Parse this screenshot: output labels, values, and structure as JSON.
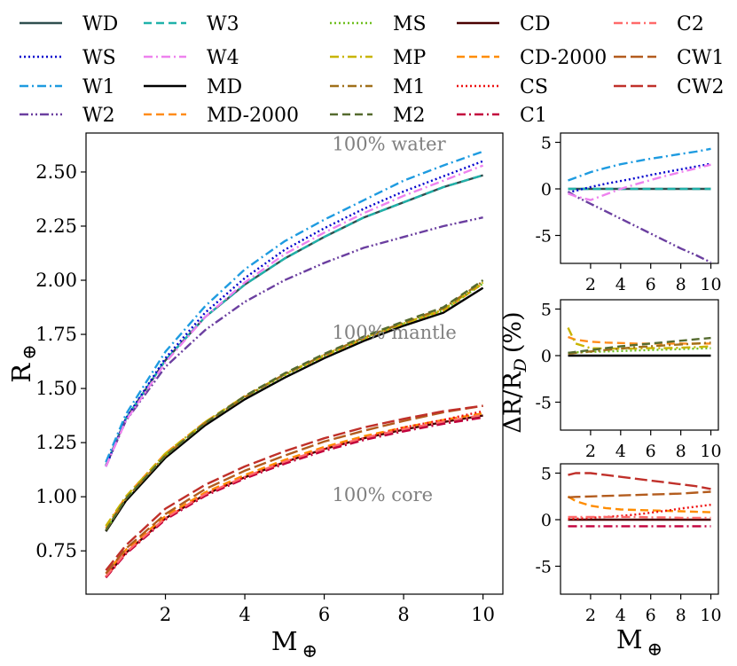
{
  "legend_entries": [
    {
      "key": "WD",
      "label": "WD",
      "color": "#2f4f4f",
      "dash": "solid"
    },
    {
      "key": "WS",
      "label": "WS",
      "color": "#0000cd",
      "dash": "dotted"
    },
    {
      "key": "W1",
      "label": "W1",
      "color": "#1e9be0",
      "dash": "dashdot"
    },
    {
      "key": "W2",
      "label": "W2",
      "color": "#6b3fa0",
      "dash": "dashdotdot"
    },
    {
      "key": "W3",
      "label": "W3",
      "color": "#20b2aa",
      "dash": "dashed"
    },
    {
      "key": "W4",
      "label": "W4",
      "color": "#ee82ee",
      "dash": "dashdot"
    },
    {
      "key": "MD",
      "label": "MD",
      "color": "#000000",
      "dash": "solid"
    },
    {
      "key": "MD-2000",
      "label": "MD-2000",
      "color": "#ff8c1a",
      "dash": "dashed"
    },
    {
      "key": "MS",
      "label": "MS",
      "color": "#6fbf1f",
      "dash": "dotted"
    },
    {
      "key": "MP",
      "label": "MP",
      "color": "#c8b400",
      "dash": "dashdot"
    },
    {
      "key": "M1",
      "label": "M1",
      "color": "#a0701a",
      "dash": "dashdot"
    },
    {
      "key": "M2",
      "label": "M2",
      "color": "#556b2f",
      "dash": "dashed"
    },
    {
      "key": "CD",
      "label": "CD",
      "color": "#4a0000",
      "dash": "solid"
    },
    {
      "key": "CD-2000",
      "label": "CD-2000",
      "color": "#ff8c00",
      "dash": "dashed"
    },
    {
      "key": "CS",
      "label": "CS",
      "color": "#ee1111",
      "dash": "dotted"
    },
    {
      "key": "C1",
      "label": "C1",
      "color": "#c2003c",
      "dash": "dashdot"
    },
    {
      "key": "C2",
      "label": "C2",
      "color": "#ff6a6a",
      "dash": "dashdot"
    },
    {
      "key": "CW1",
      "label": "CW1",
      "color": "#b35c1e",
      "dash": "longdash"
    },
    {
      "key": "CW2",
      "label": "CW2",
      "color": "#c0302a",
      "dash": "longdash"
    }
  ],
  "chart_data": [
    {
      "type": "line",
      "panel": "main",
      "xlabel": "M",
      "xlabel_symbol": "⊕",
      "ylabel": "R",
      "ylabel_symbol": "⊕",
      "xlim": [
        0,
        10.5
      ],
      "ylim": [
        0.55,
        2.68
      ],
      "xticks": [
        2,
        4,
        6,
        8,
        10
      ],
      "yticks": [
        0.75,
        1.0,
        1.25,
        1.5,
        1.75,
        2.0,
        2.25,
        2.5
      ],
      "yticklabels": [
        "0.75",
        "1.00",
        "1.25",
        "1.50",
        "1.75",
        "2.00",
        "2.25",
        "2.50"
      ],
      "annotations": [
        {
          "text": "100% water",
          "x": 6.2,
          "y": 2.6
        },
        {
          "text": "100% mantle",
          "x": 6.2,
          "y": 1.73
        },
        {
          "text": "100% core",
          "x": 6.2,
          "y": 0.98
        }
      ],
      "x": [
        0.5,
        1,
        2,
        3,
        4,
        5,
        6,
        7,
        8,
        9,
        10
      ],
      "series": [
        {
          "key": "WD",
          "values": [
            1.145,
            1.36,
            1.63,
            1.83,
            1.98,
            2.1,
            2.2,
            2.29,
            2.36,
            2.43,
            2.485
          ]
        },
        {
          "key": "W3",
          "values": [
            1.145,
            1.36,
            1.63,
            1.83,
            1.98,
            2.1,
            2.2,
            2.29,
            2.36,
            2.43,
            2.485
          ]
        },
        {
          "key": "WS",
          "values": [
            1.14,
            1.36,
            1.64,
            1.85,
            2.01,
            2.14,
            2.24,
            2.33,
            2.41,
            2.48,
            2.55
          ]
        },
        {
          "key": "W1",
          "values": [
            1.16,
            1.38,
            1.67,
            1.88,
            2.05,
            2.18,
            2.28,
            2.37,
            2.46,
            2.53,
            2.595
          ]
        },
        {
          "key": "W2",
          "values": [
            1.14,
            1.35,
            1.6,
            1.77,
            1.9,
            2.0,
            2.08,
            2.15,
            2.2,
            2.25,
            2.29
          ]
        },
        {
          "key": "W4",
          "values": [
            1.14,
            1.35,
            1.62,
            1.83,
            1.99,
            2.12,
            2.22,
            2.31,
            2.39,
            2.46,
            2.53
          ]
        },
        {
          "key": "MD",
          "values": [
            0.84,
            0.98,
            1.18,
            1.33,
            1.45,
            1.55,
            1.64,
            1.72,
            1.79,
            1.85,
            1.965
          ]
        },
        {
          "key": "MD-2000",
          "values": [
            0.855,
            1.0,
            1.2,
            1.345,
            1.465,
            1.565,
            1.65,
            1.73,
            1.8,
            1.86,
            1.985
          ]
        },
        {
          "key": "MS",
          "values": [
            0.845,
            0.99,
            1.19,
            1.34,
            1.46,
            1.56,
            1.65,
            1.73,
            1.8,
            1.86,
            1.985
          ]
        },
        {
          "key": "MP",
          "values": [
            0.865,
            1.0,
            1.2,
            1.345,
            1.465,
            1.565,
            1.655,
            1.735,
            1.8,
            1.865,
            1.99
          ]
        },
        {
          "key": "M1",
          "values": [
            0.845,
            0.99,
            1.19,
            1.34,
            1.46,
            1.565,
            1.655,
            1.735,
            1.805,
            1.87,
            1.995
          ]
        },
        {
          "key": "M2",
          "values": [
            0.845,
            0.99,
            1.19,
            1.34,
            1.465,
            1.57,
            1.66,
            1.74,
            1.81,
            1.875,
            2.0
          ]
        },
        {
          "key": "CD",
          "values": [
            0.63,
            0.74,
            0.9,
            1.01,
            1.09,
            1.16,
            1.22,
            1.27,
            1.31,
            1.345,
            1.375
          ]
        },
        {
          "key": "CD-2000",
          "values": [
            0.645,
            0.755,
            0.91,
            1.02,
            1.1,
            1.17,
            1.23,
            1.28,
            1.32,
            1.355,
            1.385
          ]
        },
        {
          "key": "CS",
          "values": [
            0.63,
            0.74,
            0.9,
            1.01,
            1.09,
            1.16,
            1.22,
            1.27,
            1.32,
            1.355,
            1.395
          ]
        },
        {
          "key": "C1",
          "values": [
            0.626,
            0.735,
            0.894,
            1.004,
            1.084,
            1.152,
            1.212,
            1.262,
            1.302,
            1.337,
            1.366
          ]
        },
        {
          "key": "C2",
          "values": [
            0.632,
            0.742,
            0.902,
            1.012,
            1.092,
            1.162,
            1.222,
            1.272,
            1.312,
            1.347,
            1.378
          ]
        },
        {
          "key": "CW1",
          "values": [
            0.645,
            0.76,
            0.92,
            1.035,
            1.12,
            1.19,
            1.255,
            1.305,
            1.35,
            1.39,
            1.42
          ]
        },
        {
          "key": "CW2",
          "values": [
            0.66,
            0.775,
            0.945,
            1.055,
            1.14,
            1.21,
            1.27,
            1.32,
            1.36,
            1.395,
            1.42
          ]
        }
      ]
    },
    {
      "type": "line",
      "panel": "water-residuals",
      "xlim": [
        0,
        10.5
      ],
      "ylim": [
        -8,
        6
      ],
      "xticks": [
        2,
        4,
        6,
        8,
        10
      ],
      "yticks": [
        -5,
        0,
        5
      ],
      "x": [
        0.5,
        1,
        2,
        3,
        4,
        5,
        6,
        7,
        8,
        9,
        10
      ],
      "series": [
        {
          "key": "WD",
          "values": [
            0,
            0,
            0,
            0,
            0,
            0,
            0,
            0,
            0,
            0,
            0
          ]
        },
        {
          "key": "W3",
          "values": [
            0,
            0,
            0,
            0,
            0,
            0,
            0,
            0,
            0,
            0,
            0
          ]
        },
        {
          "key": "WS",
          "values": [
            -0.4,
            -0.2,
            0.2,
            0.55,
            0.85,
            1.15,
            1.5,
            1.8,
            2.1,
            2.4,
            2.7
          ]
        },
        {
          "key": "W1",
          "values": [
            0.9,
            1.2,
            1.8,
            2.25,
            2.65,
            2.95,
            3.25,
            3.5,
            3.75,
            4.0,
            4.3
          ]
        },
        {
          "key": "W2",
          "values": [
            -0.3,
            -0.8,
            -1.6,
            -2.4,
            -3.2,
            -4.0,
            -4.8,
            -5.6,
            -6.4,
            -7.1,
            -7.9
          ]
        },
        {
          "key": "W4",
          "values": [
            -0.5,
            -0.8,
            -1.2,
            -0.6,
            0.0,
            0.5,
            0.95,
            1.4,
            1.8,
            2.2,
            2.6
          ]
        }
      ]
    },
    {
      "type": "line",
      "panel": "mantle-residuals",
      "ylabel": "ΔR/R",
      "ylabel_sub": "D",
      "ylabel_unit": "(%)",
      "xlim": [
        0,
        10.5
      ],
      "ylim": [
        -8,
        6
      ],
      "xticks": [
        2,
        4,
        6,
        8,
        10
      ],
      "yticks": [
        -5,
        0,
        5
      ],
      "x": [
        0.5,
        1,
        2,
        3,
        4,
        5,
        6,
        7,
        8,
        9,
        10
      ],
      "series": [
        {
          "key": "MD",
          "values": [
            0,
            0,
            0,
            0,
            0,
            0,
            0,
            0,
            0,
            0,
            0
          ]
        },
        {
          "key": "MD-2000",
          "values": [
            2.0,
            1.7,
            1.5,
            1.4,
            1.35,
            1.3,
            1.3,
            1.3,
            1.3,
            1.3,
            1.3
          ]
        },
        {
          "key": "MS",
          "values": [
            0.3,
            0.35,
            0.4,
            0.45,
            0.5,
            0.55,
            0.6,
            0.65,
            0.7,
            0.75,
            0.8
          ]
        },
        {
          "key": "MP",
          "values": [
            3.0,
            1.3,
            0.8,
            0.75,
            0.75,
            0.75,
            0.8,
            0.8,
            0.85,
            0.9,
            1.0
          ]
        },
        {
          "key": "M1",
          "values": [
            0.2,
            0.3,
            0.45,
            0.6,
            0.75,
            0.9,
            1.0,
            1.1,
            1.2,
            1.3,
            1.4
          ]
        },
        {
          "key": "M2",
          "values": [
            0.3,
            0.4,
            0.6,
            0.8,
            1.0,
            1.15,
            1.3,
            1.45,
            1.6,
            1.75,
            1.9
          ]
        }
      ]
    },
    {
      "type": "line",
      "panel": "core-residuals",
      "xlabel": "M",
      "xlabel_symbol": "⊕",
      "xlim": [
        0,
        10.5
      ],
      "ylim": [
        -8,
        6
      ],
      "xticks": [
        2,
        4,
        6,
        8,
        10
      ],
      "yticks": [
        -5,
        0,
        5
      ],
      "x": [
        0.5,
        1,
        2,
        3,
        4,
        5,
        6,
        7,
        8,
        9,
        10
      ],
      "series": [
        {
          "key": "CD",
          "values": [
            0,
            0,
            0,
            0,
            0,
            0,
            0,
            0,
            0,
            0,
            0
          ]
        },
        {
          "key": "CD-2000",
          "values": [
            2.5,
            2.0,
            1.5,
            1.25,
            1.1,
            1.05,
            1.0,
            0.95,
            0.9,
            0.85,
            0.8
          ]
        },
        {
          "key": "CS",
          "values": [
            0.1,
            0.1,
            0.2,
            0.3,
            0.4,
            0.55,
            0.75,
            0.95,
            1.2,
            1.4,
            1.6
          ]
        },
        {
          "key": "C1",
          "values": [
            -0.7,
            -0.7,
            -0.7,
            -0.7,
            -0.7,
            -0.7,
            -0.7,
            -0.7,
            -0.7,
            -0.7,
            -0.7
          ]
        },
        {
          "key": "C2",
          "values": [
            0.3,
            0.3,
            0.3,
            0.3,
            0.3,
            0.3,
            0.25,
            0.25,
            0.2,
            0.2,
            0.2
          ]
        },
        {
          "key": "CW1",
          "values": [
            2.4,
            2.45,
            2.5,
            2.55,
            2.6,
            2.65,
            2.7,
            2.75,
            2.8,
            2.9,
            3.0
          ]
        },
        {
          "key": "CW2",
          "values": [
            4.8,
            5.0,
            5.0,
            4.8,
            4.6,
            4.4,
            4.2,
            4.0,
            3.8,
            3.6,
            3.3
          ]
        }
      ]
    }
  ]
}
